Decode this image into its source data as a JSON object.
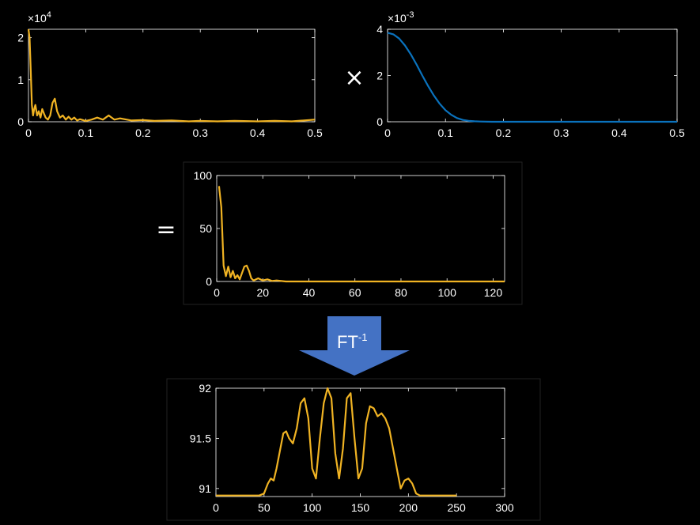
{
  "operators": {
    "multiply": "×",
    "equals": "="
  },
  "arrow": {
    "label_base": "FT",
    "label_sup": "-1",
    "color": "#4472c4"
  },
  "colors": {
    "orange": "#f0b323",
    "blue": "#0a72bd",
    "axis": "#ffffff"
  },
  "chart_data": [
    {
      "id": "spectrum",
      "type": "line",
      "title": "",
      "xlabel": "",
      "ylabel": "",
      "xlim": [
        0,
        0.5
      ],
      "ylim": [
        0,
        2.2
      ],
      "exponent_label": "×10",
      "exponent_sup": "4",
      "xticks": [
        "0",
        "0.1",
        "0.2",
        "0.3",
        "0.4",
        "0.5"
      ],
      "yticks": [
        "0",
        "1",
        "2"
      ],
      "series": [
        {
          "color": "#f0b323",
          "x": [
            0,
            0.002,
            0.004,
            0.006,
            0.008,
            0.01,
            0.012,
            0.015,
            0.018,
            0.021,
            0.024,
            0.027,
            0.03,
            0.034,
            0.038,
            0.042,
            0.046,
            0.05,
            0.055,
            0.06,
            0.065,
            0.07,
            0.075,
            0.08,
            0.085,
            0.09,
            0.1,
            0.11,
            0.12,
            0.13,
            0.14,
            0.15,
            0.16,
            0.18,
            0.2,
            0.22,
            0.25,
            0.28,
            0.3,
            0.33,
            0.36,
            0.4,
            0.43,
            0.46,
            0.5
          ],
          "y": [
            2.2,
            2.0,
            1.2,
            0.4,
            0.15,
            0.3,
            0.4,
            0.15,
            0.25,
            0.1,
            0.3,
            0.2,
            0.1,
            0.05,
            0.15,
            0.45,
            0.55,
            0.25,
            0.1,
            0.15,
            0.05,
            0.12,
            0.05,
            0.1,
            0.03,
            0.06,
            0.02,
            0.05,
            0.1,
            0.05,
            0.15,
            0.05,
            0.08,
            0.03,
            0.04,
            0.02,
            0.03,
            0.01,
            0.02,
            0.01,
            0.02,
            0.01,
            0.02,
            0.01,
            0.05
          ]
        }
      ]
    },
    {
      "id": "filter",
      "type": "line",
      "title": "",
      "xlabel": "",
      "ylabel": "",
      "xlim": [
        0,
        0.5
      ],
      "ylim": [
        0,
        4
      ],
      "exponent_label": "×10",
      "exponent_sup": "-3",
      "xticks": [
        "0",
        "0.1",
        "0.2",
        "0.3",
        "0.4",
        "0.5"
      ],
      "yticks": [
        "0",
        "2",
        "4"
      ],
      "series": [
        {
          "color": "#0a72bd",
          "x": [
            0,
            0.01,
            0.02,
            0.03,
            0.04,
            0.05,
            0.06,
            0.07,
            0.08,
            0.09,
            0.1,
            0.11,
            0.12,
            0.13,
            0.14,
            0.15,
            0.16,
            0.18,
            0.2,
            0.25,
            0.3,
            0.4,
            0.5
          ],
          "y": [
            3.85,
            3.78,
            3.6,
            3.3,
            2.92,
            2.48,
            2.0,
            1.55,
            1.13,
            0.78,
            0.5,
            0.3,
            0.16,
            0.08,
            0.04,
            0.02,
            0.01,
            0.0,
            0.0,
            0.0,
            0.0,
            0.0,
            0.0
          ]
        }
      ]
    },
    {
      "id": "product",
      "type": "line",
      "title": "",
      "xlabel": "",
      "ylabel": "",
      "xlim": [
        0,
        125
      ],
      "ylim": [
        0,
        100
      ],
      "xticks": [
        "0",
        "20",
        "40",
        "60",
        "80",
        "100",
        "120"
      ],
      "yticks": [
        "0",
        "50",
        "100"
      ],
      "series": [
        {
          "color": "#f0b323",
          "x": [
            1,
            2,
            3,
            4,
            5,
            6,
            7,
            8,
            9,
            10,
            11,
            12,
            13,
            14,
            15,
            16,
            18,
            20,
            22,
            24,
            26,
            30,
            40,
            60,
            80,
            100,
            125
          ],
          "y": [
            90,
            70,
            15,
            5,
            14,
            4,
            10,
            3,
            6,
            2,
            8,
            14,
            15,
            10,
            3,
            1,
            3,
            1,
            2,
            0.5,
            1,
            0,
            0,
            0,
            0,
            0,
            0
          ]
        }
      ]
    },
    {
      "id": "inverse",
      "type": "line",
      "title": "",
      "xlabel": "",
      "ylabel": "",
      "xlim": [
        0,
        300
      ],
      "ylim": [
        90.92,
        92
      ],
      "xticks": [
        "0",
        "50",
        "100",
        "150",
        "200",
        "250",
        "300"
      ],
      "yticks": [
        "91",
        "91.5",
        "92"
      ],
      "series": [
        {
          "color": "#f0b323",
          "x": [
            0,
            20,
            45,
            50,
            54,
            57,
            60,
            63,
            67,
            70,
            73,
            76,
            80,
            84,
            88,
            92,
            96,
            100,
            104,
            108,
            112,
            116,
            120,
            124,
            128,
            132,
            136,
            140,
            144,
            148,
            152,
            156,
            160,
            164,
            168,
            172,
            176,
            180,
            184,
            188,
            192,
            196,
            200,
            204,
            208,
            212,
            216,
            220,
            250
          ],
          "y": [
            90.93,
            90.93,
            90.93,
            90.95,
            91.05,
            91.1,
            91.08,
            91.2,
            91.4,
            91.55,
            91.57,
            91.5,
            91.45,
            91.6,
            91.85,
            91.9,
            91.7,
            91.2,
            91.1,
            91.5,
            91.85,
            92.0,
            91.9,
            91.35,
            91.1,
            91.4,
            91.9,
            91.95,
            91.5,
            91.1,
            91.2,
            91.65,
            91.82,
            91.8,
            91.72,
            91.75,
            91.7,
            91.6,
            91.4,
            91.2,
            91.0,
            91.08,
            91.1,
            91.05,
            90.95,
            90.93,
            90.93,
            90.93,
            90.93
          ]
        }
      ]
    }
  ]
}
